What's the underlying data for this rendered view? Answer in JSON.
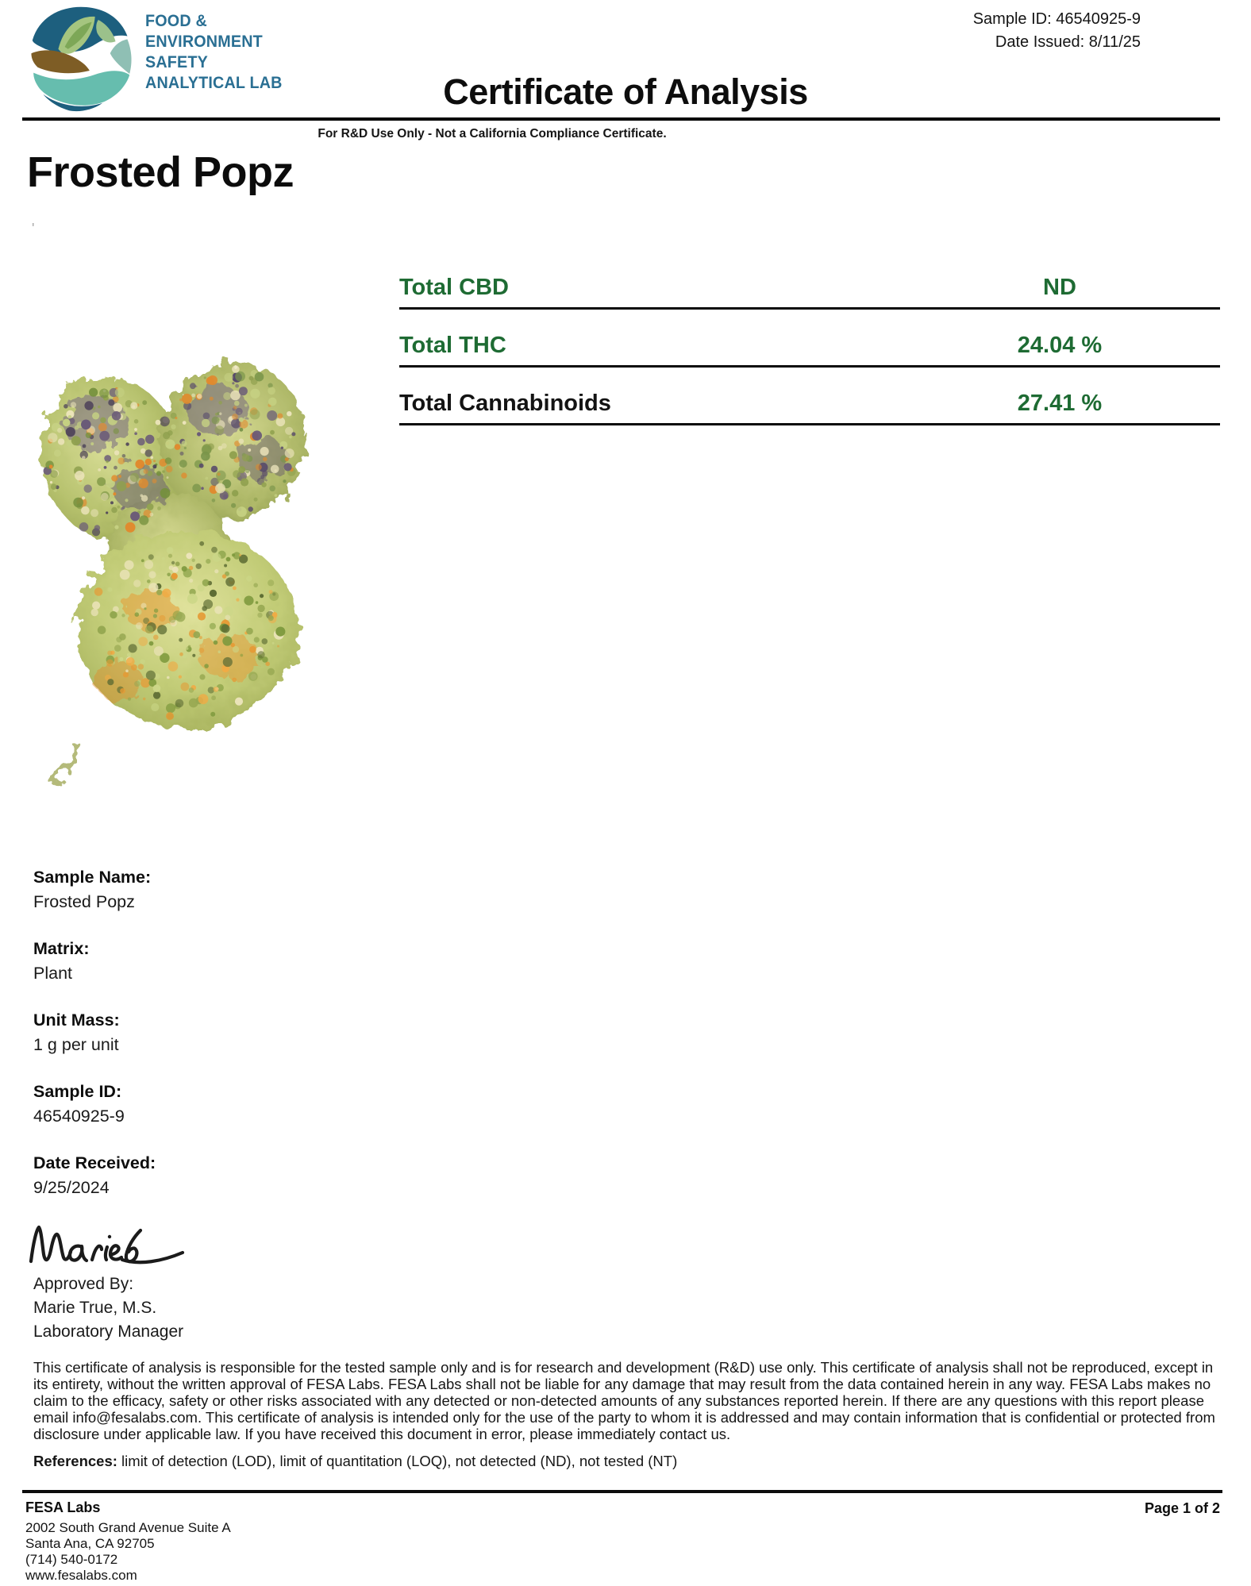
{
  "header": {
    "lab_name_lines": [
      "FOOD &",
      "ENVIRONMENT",
      "SAFETY",
      "ANALYTICAL LAB"
    ],
    "sample_id_label": "Sample ID:",
    "sample_id_value": "46540925-9",
    "date_issued_label": "Date Issued:",
    "date_issued_value": "8/11/25",
    "title": "Certificate of Analysis",
    "subtitle": "For R&D Use Only - Not a California Compliance Certificate."
  },
  "product": {
    "name": "Frosted Popz",
    "stray_mark": "'"
  },
  "potency": {
    "rows": [
      {
        "label": "Total CBD",
        "value": "ND"
      },
      {
        "label": "Total THC",
        "value": "24.04 %"
      },
      {
        "label": "Total Cannabinoids",
        "value": "27.41 %"
      }
    ]
  },
  "sample_details": [
    {
      "label": "Sample Name:",
      "value": "Frosted Popz"
    },
    {
      "label": "Matrix:",
      "value": "Plant"
    },
    {
      "label": "Unit Mass:",
      "value": "1 g per unit"
    },
    {
      "label": "Sample ID:",
      "value": "46540925-9"
    },
    {
      "label": "Date Received:",
      "value": "9/25/2024"
    }
  ],
  "approval": {
    "signature_name": "Maries",
    "approved_by_label": "Approved By:",
    "approver_name": "Marie True, M.S.",
    "approver_title": "Laboratory Manager"
  },
  "disclaimer": {
    "body": "This certificate of analysis is responsible for the tested sample only and is for research and development (R&D) use only. This certificate of analysis shall not be reproduced, except in its entirety, without the written approval of FESA Labs. FESA Labs shall not be liable for any damage that may result from the data contained herein in any way. FESA Labs makes no claim to the efficacy, safety or other risks associated with any detected or non-detected amounts of any substances reported herein. If there are any questions with this report please email info@fesalabs.com. This certificate of analysis is intended only for the use of the party to whom it is addressed and may contain information that is confidential or protected from disclosure under applicable law. If you have received this document in error, please immediately contact us.",
    "references_label": "References:",
    "references_text": " limit of detection (LOD), limit of quantitation (LOQ), not detected (ND), not tested (NT)"
  },
  "footer": {
    "company": "FESA Labs",
    "address_line1": "2002 South Grand Avenue Suite A",
    "address_line2": "Santa Ana, CA 92705",
    "phone": "(714) 540-0172",
    "website": "www.fesalabs.com",
    "page": "Page 1 of 2"
  },
  "colors": {
    "accent_green": "#1e6b33",
    "logo_blue": "#2a6f93",
    "logo_dark_blue": "#1d5f7e",
    "logo_light_green": "#a5c57f",
    "logo_teal": "#66bdae",
    "logo_brown": "#7e5d25"
  }
}
